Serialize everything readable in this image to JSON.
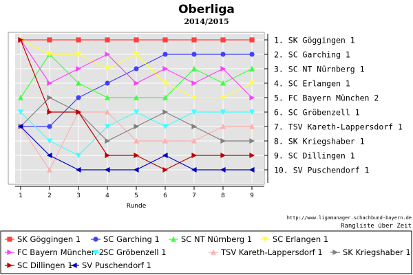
{
  "chart_data": {
    "type": "line",
    "title": "Oberliga",
    "subtitle": "2014/2015",
    "xlabel": "Runde",
    "ylabel": "",
    "x": [
      1,
      2,
      3,
      4,
      5,
      6,
      7,
      8,
      9
    ],
    "ylim": [
      1,
      10
    ],
    "y_inverted": true,
    "grid": true,
    "legend_position": "bottom",
    "right_labels": [
      "1.  SK Göggingen 1",
      "2.  SC Garching 1",
      "3.  SC NT Nürnberg 1",
      "4.  SC Erlangen 1",
      "5.  FC Bayern München 2",
      "6.  SC Gröbenzell 1",
      "7.  TSV Kareth-Lappersdorf 1",
      "8.  SK Kriegshaber 1",
      "9.  SC Dillingen 1",
      "10.  SV Puschendorf 1"
    ],
    "series": [
      {
        "name": "SK Göggingen 1",
        "color": "#ff4040",
        "marker": "square",
        "values": [
          1,
          1,
          1,
          1,
          1,
          1,
          1,
          1,
          1
        ]
      },
      {
        "name": "SC Garching 1",
        "color": "#4040ff",
        "marker": "circle",
        "values": [
          7,
          7,
          5,
          4,
          3,
          2,
          2,
          2,
          2
        ]
      },
      {
        "name": "SC NT Nürnberg 1",
        "color": "#40ff40",
        "marker": "triangle-up",
        "values": [
          5,
          2,
          4,
          5,
          5,
          5,
          3,
          4,
          3
        ]
      },
      {
        "name": "SC Erlangen 1",
        "color": "#ffff40",
        "marker": "triangle-down",
        "values": [
          1,
          2,
          2,
          3,
          2,
          4,
          5,
          5,
          4
        ]
      },
      {
        "name": "FC Bayern München 2",
        "color": "#ff40ff",
        "marker": "triangle-right",
        "values": [
          1,
          4,
          3,
          2,
          4,
          3,
          4,
          3,
          5
        ]
      },
      {
        "name": "SC Gröbenzell 1",
        "color": "#40ffff",
        "marker": "triangle-down",
        "values": [
          6,
          8,
          9,
          7,
          6,
          7,
          6,
          6,
          6
        ]
      },
      {
        "name": "TSV Kareth-Lappersdorf 1",
        "color": "#ffb0b0",
        "marker": "triangle-up",
        "values": [
          7,
          10,
          6,
          6,
          8,
          8,
          8,
          7,
          7
        ]
      },
      {
        "name": "SK Kriegshaber 1",
        "color": "#808080",
        "marker": "triangle-right",
        "values": [
          7,
          5,
          6,
          8,
          7,
          6,
          7,
          8,
          8
        ]
      },
      {
        "name": "SC Dillingen 1",
        "color": "#c00000",
        "marker": "triangle-right",
        "values": [
          1,
          6,
          6,
          9,
          9,
          10,
          9,
          9,
          9
        ]
      },
      {
        "name": "SV Puschendorf 1",
        "color": "#0000c0",
        "marker": "triangle-left",
        "values": [
          7,
          9,
          10,
          10,
          10,
          9,
          10,
          10,
          10
        ]
      }
    ],
    "credit": "http://www.ligamanager.schachbund-bayern.de",
    "caption": "Rangliste über Zeit"
  }
}
